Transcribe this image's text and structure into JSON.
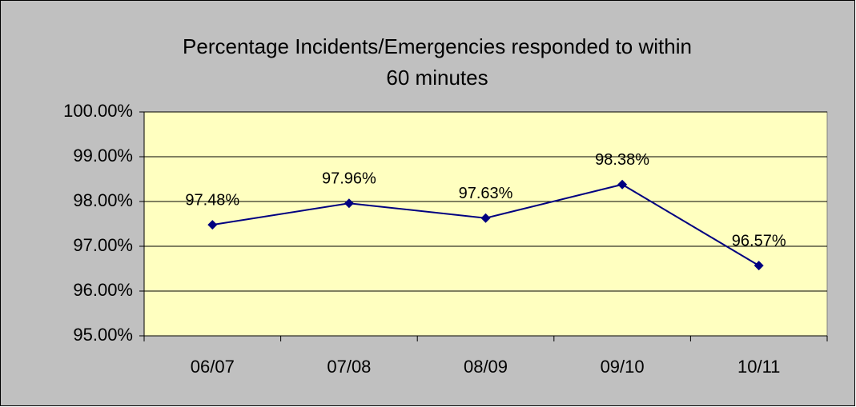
{
  "chart_data": {
    "type": "line",
    "title": [
      "Percentage Incidents/Emergencies responded to within",
      "60 minutes"
    ],
    "categories": [
      "06/07",
      "07/08",
      "08/09",
      "09/10",
      "10/11"
    ],
    "series": [
      {
        "name": "Percentage",
        "color": "#000080",
        "values": [
          97.48,
          97.96,
          97.63,
          98.38,
          96.57
        ],
        "value_labels": [
          "97.48%",
          "97.96%",
          "97.63%",
          "98.38%",
          "96.57%"
        ]
      }
    ],
    "ylim": [
      95,
      100
    ],
    "yticks": [
      {
        "value": 95,
        "label": "95.00%"
      },
      {
        "value": 96,
        "label": "96.00%"
      },
      {
        "value": 97,
        "label": "97.00%"
      },
      {
        "value": 98,
        "label": "98.00%"
      },
      {
        "value": 99,
        "label": "99.00%"
      },
      {
        "value": 100,
        "label": "100.00%"
      }
    ],
    "grid": true
  }
}
